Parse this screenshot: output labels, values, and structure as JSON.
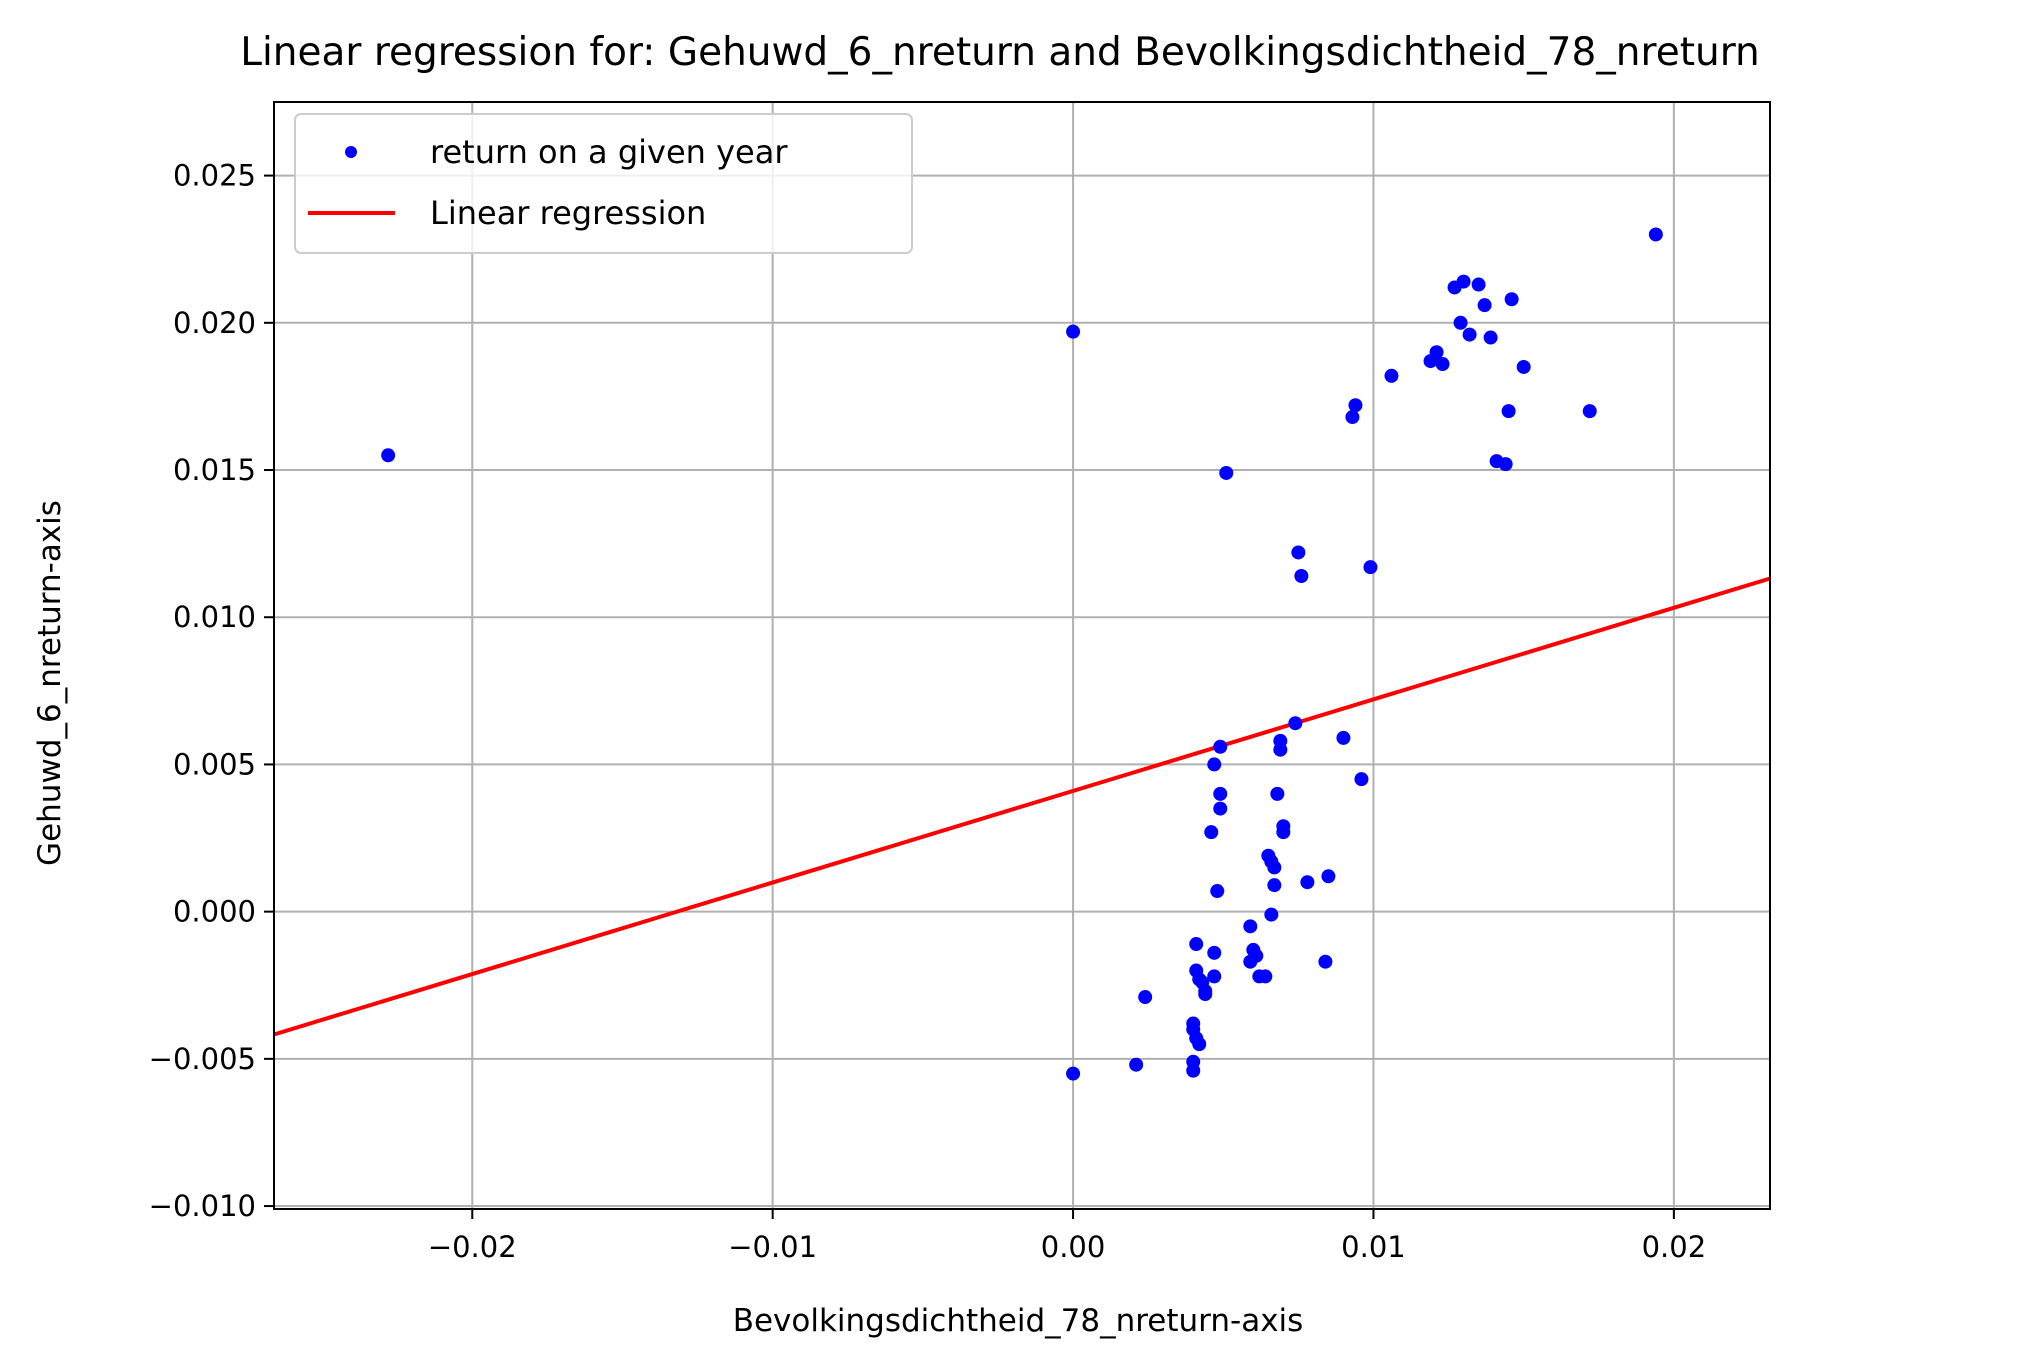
{
  "chart_data": {
    "type": "scatter",
    "title": "Linear regression for: Gehuwd_6_nreturn and Bevolkingsdichtheid_78_nreturn",
    "xlabel": "Bevolkingsdichtheid_78_nreturn-axis",
    "ylabel": "Gehuwd_6_nreturn-axis",
    "xlim": [
      -0.0266,
      0.0232
    ],
    "ylim": [
      -0.0101,
      0.0275
    ],
    "xticks": [
      -0.02,
      -0.01,
      0.0,
      0.01,
      0.02
    ],
    "xtick_labels": [
      "−0.02",
      "−0.01",
      "0.00",
      "0.01",
      "0.02"
    ],
    "yticks": [
      -0.01,
      -0.005,
      0.0,
      0.005,
      0.01,
      0.015,
      0.02,
      0.025
    ],
    "ytick_labels": [
      "−0.010",
      "−0.005",
      "0.000",
      "0.005",
      "0.010",
      "0.015",
      "0.020",
      "0.025"
    ],
    "grid": true,
    "legend_position": "top-left",
    "series": [
      {
        "name": "return on a given year",
        "kind": "scatter",
        "color": "#0000ff",
        "points": [
          [
            -0.0228,
            0.0155
          ],
          [
            0.0,
            0.0197
          ],
          [
            0.0,
            -0.0055
          ],
          [
            0.0021,
            -0.0052
          ],
          [
            0.0024,
            -0.0029
          ],
          [
            0.004,
            -0.0038
          ],
          [
            0.004,
            -0.004
          ],
          [
            0.0041,
            -0.0043
          ],
          [
            0.0042,
            -0.0045
          ],
          [
            0.004,
            -0.0051
          ],
          [
            0.004,
            -0.0054
          ],
          [
            0.0041,
            -0.0011
          ],
          [
            0.0041,
            -0.002
          ],
          [
            0.0042,
            -0.0023
          ],
          [
            0.0043,
            -0.0024
          ],
          [
            0.0044,
            -0.0027
          ],
          [
            0.0044,
            -0.0028
          ],
          [
            0.0047,
            -0.0022
          ],
          [
            0.0047,
            -0.0014
          ],
          [
            0.0046,
            0.0027
          ],
          [
            0.0048,
            0.0007
          ],
          [
            0.0047,
            0.005
          ],
          [
            0.0049,
            0.0056
          ],
          [
            0.0049,
            0.004
          ],
          [
            0.0049,
            0.0035
          ],
          [
            0.0051,
            0.0149
          ],
          [
            0.0059,
            -0.0005
          ],
          [
            0.0059,
            -0.0017
          ],
          [
            0.006,
            -0.0013
          ],
          [
            0.0061,
            -0.0015
          ],
          [
            0.0062,
            -0.0022
          ],
          [
            0.0064,
            -0.0022
          ],
          [
            0.0065,
            0.0019
          ],
          [
            0.0066,
            0.0017
          ],
          [
            0.0066,
            -0.0001
          ],
          [
            0.0067,
            0.0015
          ],
          [
            0.0067,
            0.0009
          ],
          [
            0.0068,
            0.004
          ],
          [
            0.0069,
            0.0058
          ],
          [
            0.0069,
            0.0055
          ],
          [
            0.007,
            0.0029
          ],
          [
            0.007,
            0.0027
          ],
          [
            0.0074,
            0.0064
          ],
          [
            0.0075,
            0.0122
          ],
          [
            0.0076,
            0.0114
          ],
          [
            0.0078,
            0.001
          ],
          [
            0.0084,
            -0.0017
          ],
          [
            0.0085,
            0.0012
          ],
          [
            0.009,
            0.0059
          ],
          [
            0.0093,
            0.0168
          ],
          [
            0.0094,
            0.0172
          ],
          [
            0.0096,
            0.0045
          ],
          [
            0.0099,
            0.0117
          ],
          [
            0.0106,
            0.0182
          ],
          [
            0.0119,
            0.0187
          ],
          [
            0.0121,
            0.019
          ],
          [
            0.0123,
            0.0186
          ],
          [
            0.0127,
            0.0212
          ],
          [
            0.0129,
            0.02
          ],
          [
            0.013,
            0.0214
          ],
          [
            0.0132,
            0.0196
          ],
          [
            0.0135,
            0.0213
          ],
          [
            0.0137,
            0.0206
          ],
          [
            0.0139,
            0.0195
          ],
          [
            0.0141,
            0.0153
          ],
          [
            0.0144,
            0.0152
          ],
          [
            0.0145,
            0.017
          ],
          [
            0.0146,
            0.0208
          ],
          [
            0.015,
            0.0185
          ],
          [
            0.0172,
            0.017
          ],
          [
            0.0194,
            0.023
          ]
        ]
      },
      {
        "name": "Linear regression",
        "kind": "line",
        "color": "#ff0000",
        "slope": 0.311,
        "intercept": 0.0041
      }
    ]
  }
}
